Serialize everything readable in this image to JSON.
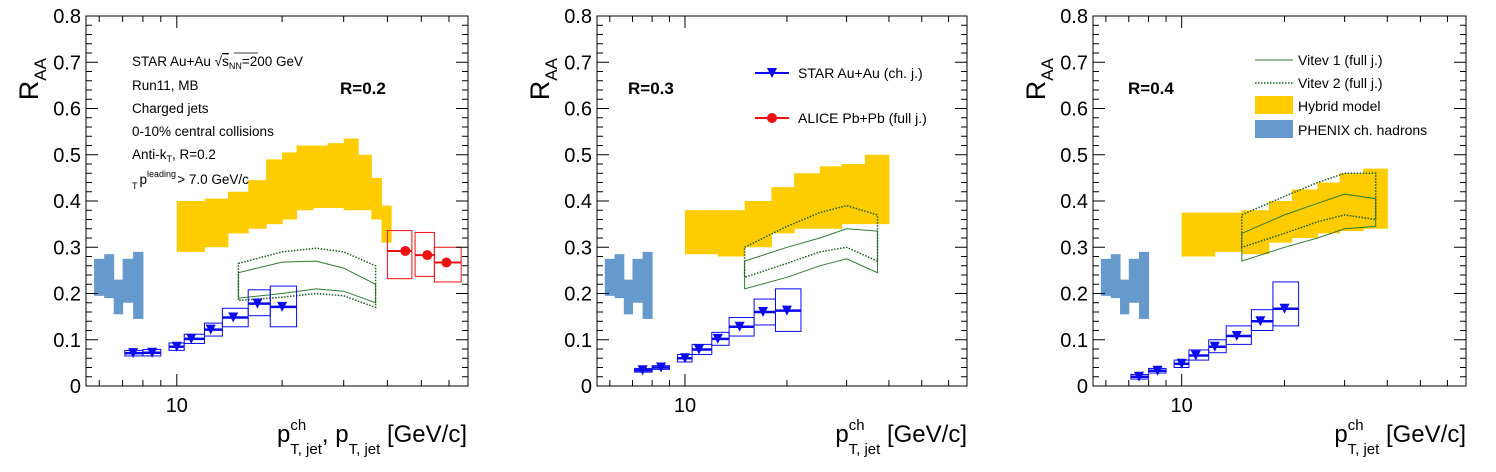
{
  "chart_data": [
    {
      "type": "scatter",
      "panel_label": "R=0.2",
      "xlog": true,
      "xlim": [
        5.5,
        68
      ],
      "ylim": [
        0,
        0.8
      ],
      "y_ticks": [
        "0",
        "0.1",
        "0.2",
        "0.3",
        "0.4",
        "0.5",
        "0.6",
        "0.7",
        "0.8"
      ],
      "x_tick_labels": [
        "10"
      ],
      "ylabel": "R_AA",
      "xlabel": "p_T,jet^ch, p_T, jet [GeV/c]",
      "info_lines": [
        "STAR Au+Au √s_NN=200 GeV",
        "Run11, MB",
        "Charged jets",
        "0-10% central collisions",
        "Anti-k_T, R=0.2",
        "p_T^leading > 7.0 GeV/c"
      ],
      "star": {
        "name": "STAR Au+Au (ch. j.)",
        "points": [
          [
            7.5,
            0.071
          ],
          [
            8.5,
            0.072
          ],
          [
            10,
            0.085
          ],
          [
            11,
            0.102
          ],
          [
            12.5,
            0.122
          ],
          [
            14.5,
            0.148
          ],
          [
            17,
            0.178
          ],
          [
            20,
            0.171
          ]
        ],
        "sys": [
          [
            7.1,
            8,
            0.065,
            0.077
          ],
          [
            8,
            9,
            0.065,
            0.079
          ],
          [
            9.5,
            10.5,
            0.077,
            0.093
          ],
          [
            10.5,
            12,
            0.092,
            0.112
          ],
          [
            12,
            13.5,
            0.108,
            0.136
          ],
          [
            13.5,
            16,
            0.128,
            0.168
          ],
          [
            16,
            18.5,
            0.152,
            0.208
          ],
          [
            18.5,
            22,
            0.128,
            0.216
          ]
        ]
      },
      "alice": {
        "name": "ALICE Pb+Pb (full j.)",
        "points": [
          [
            45,
            0.292
          ],
          [
            52,
            0.283
          ],
          [
            59,
            0.267
          ]
        ],
        "sys": [
          [
            40,
            47,
            0.232,
            0.336
          ],
          [
            48,
            54.5,
            0.237,
            0.332
          ],
          [
            54.5,
            65,
            0.225,
            0.3
          ]
        ]
      },
      "phenix": {
        "name": "PHENIX ch. hadrons",
        "bins": [
          [
            5.8,
            6.2,
            0.195,
            0.275
          ],
          [
            6.2,
            6.6,
            0.19,
            0.285
          ],
          [
            6.6,
            7,
            0.155,
            0.23
          ],
          [
            7,
            7.5,
            0.18,
            0.275
          ],
          [
            7.5,
            8,
            0.145,
            0.29
          ]
        ]
      },
      "hybrid": {
        "name": "Hybrid model",
        "bins": [
          [
            10,
            12,
            0.29,
            0.4
          ],
          [
            12,
            14,
            0.3,
            0.405
          ],
          [
            14,
            16,
            0.33,
            0.42
          ],
          [
            16,
            18,
            0.34,
            0.445
          ],
          [
            18,
            20,
            0.35,
            0.49
          ],
          [
            20,
            22,
            0.36,
            0.505
          ],
          [
            22,
            24.5,
            0.38,
            0.52
          ],
          [
            24.5,
            27,
            0.385,
            0.52
          ],
          [
            27,
            30,
            0.385,
            0.525
          ],
          [
            30,
            33,
            0.38,
            0.535
          ],
          [
            33,
            36,
            0.38,
            0.5
          ],
          [
            36,
            38.5,
            0.36,
            0.45
          ],
          [
            38.5,
            41,
            0.31,
            0.39
          ]
        ]
      },
      "vitev1": {
        "name": "Vitev 1 (full j.)",
        "x": [
          15,
          20,
          25,
          30,
          37
        ],
        "lo": [
          0.19,
          0.2,
          0.21,
          0.205,
          0.18
        ],
        "hi": [
          0.245,
          0.268,
          0.27,
          0.255,
          0.22
        ]
      },
      "vitev2": {
        "name": "Vitev 2 (full j.)",
        "x": [
          15,
          20,
          25,
          30,
          37
        ],
        "lo": [
          0.185,
          0.192,
          0.2,
          0.195,
          0.17
        ],
        "hi": [
          0.265,
          0.29,
          0.298,
          0.29,
          0.26
        ]
      }
    },
    {
      "type": "scatter",
      "panel_label": "R=0.3",
      "xlog": true,
      "xlim": [
        5.5,
        68
      ],
      "ylim": [
        0,
        0.8
      ],
      "y_ticks": [
        "0",
        "0.1",
        "0.2",
        "0.3",
        "0.4",
        "0.5",
        "0.6",
        "0.7",
        "0.8"
      ],
      "x_tick_labels": [
        "10"
      ],
      "ylabel": "R_AA",
      "xlabel": "p_T,jet^ch [GeV/c]",
      "star": {
        "name": "STAR Au+Au (ch. j.)",
        "points": [
          [
            7.5,
            0.034
          ],
          [
            8.5,
            0.04
          ],
          [
            10,
            0.06
          ],
          [
            11,
            0.079
          ],
          [
            12.5,
            0.102
          ],
          [
            14.5,
            0.128
          ],
          [
            17,
            0.16
          ],
          [
            20,
            0.163
          ]
        ],
        "sys": [
          [
            7.1,
            8,
            0.03,
            0.038
          ],
          [
            8,
            9,
            0.036,
            0.044
          ],
          [
            9.5,
            10.5,
            0.052,
            0.068
          ],
          [
            10.5,
            12,
            0.068,
            0.09
          ],
          [
            12,
            13.5,
            0.088,
            0.116
          ],
          [
            13.5,
            16,
            0.108,
            0.148
          ],
          [
            16,
            18.5,
            0.132,
            0.188
          ],
          [
            18.5,
            22,
            0.118,
            0.21
          ]
        ]
      },
      "phenix": {
        "name": "PHENIX ch. hadrons",
        "bins": [
          [
            5.8,
            6.2,
            0.195,
            0.275
          ],
          [
            6.2,
            6.6,
            0.19,
            0.285
          ],
          [
            6.6,
            7,
            0.155,
            0.23
          ],
          [
            7,
            7.5,
            0.18,
            0.275
          ],
          [
            7.5,
            8,
            0.145,
            0.29
          ]
        ]
      },
      "hybrid": {
        "name": "Hybrid model",
        "bins": [
          [
            10,
            12.5,
            0.285,
            0.38
          ],
          [
            12.5,
            15,
            0.28,
            0.38
          ],
          [
            15,
            18,
            0.3,
            0.4
          ],
          [
            18,
            21,
            0.33,
            0.43
          ],
          [
            21,
            25,
            0.34,
            0.46
          ],
          [
            25,
            29,
            0.34,
            0.475
          ],
          [
            29,
            34,
            0.35,
            0.48
          ],
          [
            34,
            40,
            0.35,
            0.5
          ]
        ]
      },
      "vitev1": {
        "name": "Vitev 1 (full j.)",
        "x": [
          15,
          20,
          25,
          30,
          37
        ],
        "lo": [
          0.21,
          0.235,
          0.26,
          0.275,
          0.245
        ],
        "hi": [
          0.27,
          0.3,
          0.32,
          0.34,
          0.335
        ]
      },
      "vitev2": {
        "name": "Vitev 2 (full j.)",
        "x": [
          15,
          20,
          25,
          30,
          37
        ],
        "lo": [
          0.235,
          0.265,
          0.29,
          0.3,
          0.27
        ],
        "hi": [
          0.3,
          0.345,
          0.375,
          0.39,
          0.37
        ]
      }
    },
    {
      "type": "scatter",
      "panel_label": "R=0.4",
      "xlog": true,
      "xlim": [
        5.5,
        68
      ],
      "ylim": [
        0,
        0.8
      ],
      "y_ticks": [
        "0",
        "0.1",
        "0.2",
        "0.3",
        "0.4",
        "0.5",
        "0.6",
        "0.7",
        "0.8"
      ],
      "x_tick_labels": [
        "10"
      ],
      "ylabel": "R_AA",
      "xlabel": "p_T,jet^ch [GeV/c]",
      "star": {
        "name": "STAR Au+Au (ch. j.)",
        "points": [
          [
            7.5,
            0.02
          ],
          [
            8.5,
            0.033
          ],
          [
            10,
            0.048
          ],
          [
            11,
            0.066
          ],
          [
            12.5,
            0.085
          ],
          [
            14.5,
            0.108
          ],
          [
            17,
            0.14
          ],
          [
            20,
            0.167
          ]
        ],
        "sys": [
          [
            7.1,
            8,
            0.015,
            0.025
          ],
          [
            8,
            9,
            0.028,
            0.038
          ],
          [
            9.5,
            10.5,
            0.04,
            0.056
          ],
          [
            10.5,
            12,
            0.056,
            0.078
          ],
          [
            12,
            13.5,
            0.072,
            0.1
          ],
          [
            13.5,
            16,
            0.09,
            0.13
          ],
          [
            16,
            18.5,
            0.12,
            0.165
          ],
          [
            18.5,
            22,
            0.13,
            0.225
          ]
        ]
      },
      "phenix": {
        "name": "PHENIX ch. hadrons",
        "bins": [
          [
            5.8,
            6.2,
            0.195,
            0.275
          ],
          [
            6.2,
            6.6,
            0.19,
            0.285
          ],
          [
            6.6,
            7,
            0.155,
            0.23
          ],
          [
            7,
            7.5,
            0.18,
            0.275
          ],
          [
            7.5,
            8,
            0.145,
            0.29
          ]
        ]
      },
      "hybrid": {
        "name": "Hybrid model",
        "bins": [
          [
            10,
            12.5,
            0.28,
            0.375
          ],
          [
            12.5,
            15,
            0.29,
            0.375
          ],
          [
            15,
            18,
            0.285,
            0.38
          ],
          [
            18,
            21,
            0.31,
            0.4
          ],
          [
            21,
            25,
            0.32,
            0.425
          ],
          [
            25,
            29,
            0.33,
            0.44
          ],
          [
            29,
            34,
            0.335,
            0.46
          ],
          [
            34,
            40,
            0.34,
            0.47
          ]
        ]
      },
      "vitev1": {
        "name": "Vitev 1 (full j.)",
        "x": [
          15,
          20,
          25,
          30,
          37
        ],
        "lo": [
          0.27,
          0.3,
          0.32,
          0.34,
          0.345
        ],
        "hi": [
          0.33,
          0.37,
          0.395,
          0.415,
          0.405
        ]
      },
      "vitev2": {
        "name": "Vitev 2 (full j.)",
        "x": [
          15,
          20,
          25,
          30,
          37
        ],
        "lo": [
          0.3,
          0.33,
          0.355,
          0.37,
          0.36
        ],
        "hi": [
          0.37,
          0.41,
          0.44,
          0.46,
          0.46
        ]
      }
    }
  ],
  "colors": {
    "star": "#0a0aee",
    "alice": "#ee1111",
    "hybrid": "#ffcc00",
    "phenix": "#6699cc",
    "vitev1": "#2e7d32",
    "vitev2": "#1b5e20"
  },
  "labels": {
    "r_aa_main": "R",
    "r_aa_sub": "AA",
    "info": {
      "line1a": "STAR Au+Au ",
      "sqrt": "√",
      "s": "s",
      "nn": "NN",
      "line1b": "=200 GeV",
      "line2": "Run11, MB",
      "line3": "Charged jets",
      "line4": "0-10% central collisions",
      "line5a": "Anti-k",
      "line5sub": "T",
      "line5b": ", R=0.2",
      "line6p": "p",
      "line6sup": "leading",
      "line6sub": "T",
      "line6b": " > 7.0 GeV/c"
    },
    "legend_star": "STAR Au+Au (ch. j.)",
    "legend_alice": "ALICE Pb+Pb (full j.)",
    "legend_vitev1": "Vitev 1 (full j.)",
    "legend_vitev2": "Vitev 2 (full j.)",
    "legend_hybrid": "Hybrid model",
    "legend_phenix": "PHENIX ch. hadrons",
    "xlabel_p": "p",
    "xlabel_ch": "ch",
    "xlabel_tjet": "T, jet",
    "xlabel_comma": ", ",
    "xlabel_p2": "p",
    "xlabel_tjet2": "T, jet",
    "xlabel_unit": " [GeV/c]"
  }
}
